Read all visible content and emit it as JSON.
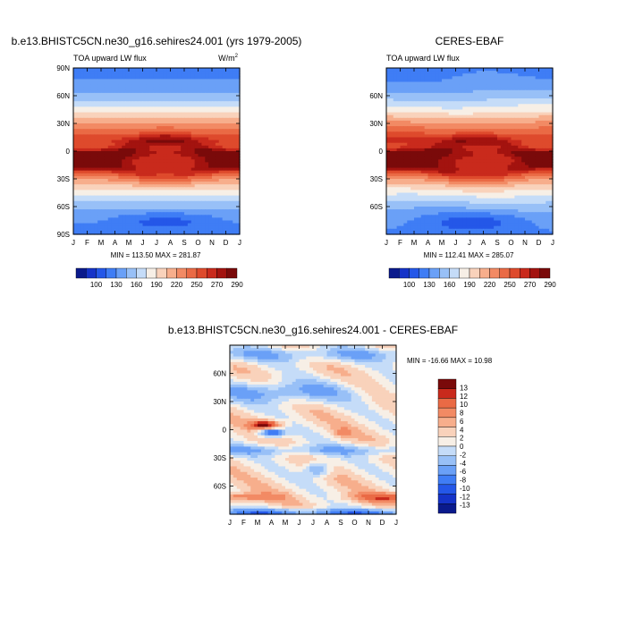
{
  "figure": {
    "panel1_title": "b.e13.BHISTC5CN.ne30_g16.sehires24.001 (yrs 1979-2005)",
    "panel2_title": "CERES-EBAF",
    "panel3_title": "b.e13.BHISTC5CN.ne30_g16.sehires24.001 - CERES-EBAF",
    "field_label": "TOA upward LW flux",
    "units_base": "W/m",
    "units_exp": "2",
    "panel1_stats": "MIN = 113.50  MAX = 281.87",
    "panel2_stats": "MIN = 112.41  MAX = 285.07",
    "panel3_stats": "MIN = -16.66  MAX =  10.98"
  },
  "chart_data": [
    {
      "type": "heatmap",
      "name": "model",
      "title": "b.e13.BHISTC5CN.ne30_g16.sehires24.001 (yrs 1979-2005)",
      "subtitle": "TOA upward LW flux",
      "x_tick_labels": [
        "J",
        "F",
        "M",
        "A",
        "M",
        "J",
        "J",
        "A",
        "S",
        "O",
        "N",
        "D",
        "J"
      ],
      "y_tick_labels": [
        "90N",
        "60N",
        "30N",
        "0",
        "30S",
        "60S",
        "90S"
      ],
      "y_tick_values": [
        90,
        60,
        30,
        0,
        -30,
        -60,
        -90
      ],
      "ylim": [
        -90,
        90
      ],
      "min": 113.5,
      "max": 281.87,
      "colorbar_ticks": [
        "100",
        "130",
        "160",
        "190",
        "220",
        "250",
        "270",
        "290"
      ],
      "colorbar_levels": [
        85,
        100,
        115,
        130,
        145,
        160,
        175,
        190,
        205,
        220,
        235,
        250,
        260,
        270,
        280,
        290
      ]
    },
    {
      "type": "heatmap",
      "name": "obs",
      "title": "CERES-EBAF",
      "subtitle": "TOA upward LW flux",
      "x_tick_labels": [
        "J",
        "F",
        "M",
        "A",
        "M",
        "J",
        "J",
        "A",
        "S",
        "O",
        "N",
        "D",
        "J"
      ],
      "y_tick_labels": [
        "60N",
        "30N",
        "0",
        "30S",
        "60S"
      ],
      "y_tick_values": [
        60,
        30,
        0,
        -30,
        -60
      ],
      "ylim": [
        -90,
        90
      ],
      "min": 112.41,
      "max": 285.07,
      "colorbar_ticks": [
        "100",
        "130",
        "160",
        "190",
        "220",
        "250",
        "270",
        "290"
      ],
      "colorbar_levels": [
        85,
        100,
        115,
        130,
        145,
        160,
        175,
        190,
        205,
        220,
        235,
        250,
        260,
        270,
        280,
        290
      ]
    },
    {
      "type": "heatmap",
      "name": "difference",
      "title": "b.e13.BHISTC5CN.ne30_g16.sehires24.001 - CERES-EBAF",
      "x_tick_labels": [
        "J",
        "F",
        "M",
        "A",
        "M",
        "J",
        "J",
        "A",
        "S",
        "O",
        "N",
        "D",
        "J"
      ],
      "y_tick_labels": [
        "60N",
        "30N",
        "0",
        "30S",
        "60S"
      ],
      "y_tick_values": [
        60,
        30,
        0,
        -30,
        -60
      ],
      "ylim": [
        -90,
        90
      ],
      "min": -16.66,
      "max": 10.98,
      "colorbar_ticks": [
        "13",
        "12",
        "10",
        "8",
        "6",
        "4",
        "2",
        "0",
        "-2",
        "-4",
        "-6",
        "-8",
        "-10",
        "-12",
        "-13"
      ],
      "colorbar_levels": [
        -13,
        -12,
        -10,
        -8,
        -6,
        -4,
        -2,
        0,
        2,
        4,
        6,
        8,
        10,
        12,
        13
      ]
    }
  ],
  "colors": {
    "abs_palette": [
      "#0a1a8c",
      "#1533c8",
      "#2457e8",
      "#3f7df5",
      "#6aa0f7",
      "#98c0f7",
      "#c5dcf8",
      "#f7efe6",
      "#f9d2bb",
      "#f7ae8c",
      "#f28a64",
      "#ea6a45",
      "#de4a2c",
      "#c92a1c",
      "#a3130f",
      "#7a0a0a"
    ],
    "diff_palette": [
      "#0a1a8c",
      "#1533c8",
      "#2457e8",
      "#3f7df5",
      "#6aa0f7",
      "#98c0f7",
      "#c5dcf8",
      "#f7efe6",
      "#f9d2bb",
      "#f7ae8c",
      "#f28a64",
      "#ea6a45",
      "#c92a1c",
      "#7a0a0a"
    ]
  }
}
